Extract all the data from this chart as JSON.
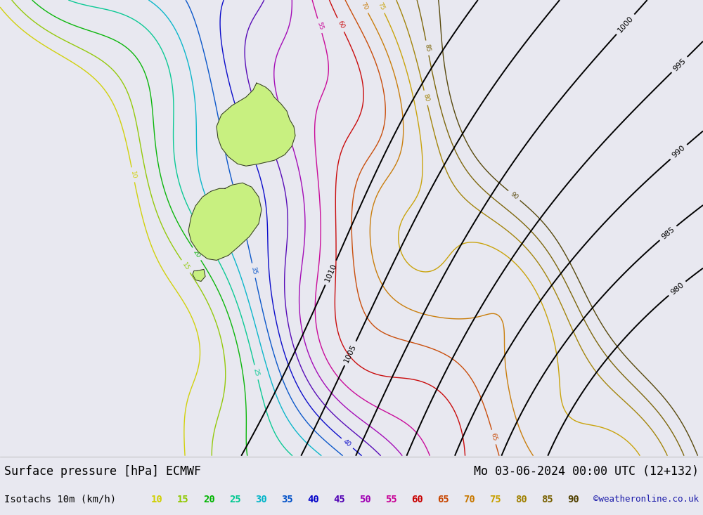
{
  "title_left": "Surface pressure [hPa] ECMWF",
  "title_right": "Mo 03-06-2024 00:00 UTC (12+132)",
  "label_isotachs": "Isotachs 10m (km/h)",
  "watermark": "©weatheronline.co.uk",
  "bg_color": "#e8e8f0",
  "land_color": "#c8f080",
  "land_border_color": "#303030",
  "sea_color": "#e8e8f0",
  "bottom_bar_color": "#e8e8f0",
  "pressure_color": "#000000",
  "font_size_title": 12,
  "font_size_legend": 10,
  "font_size_watermark": 9,
  "isotach_levels": [
    10,
    15,
    20,
    25,
    30,
    35,
    40,
    45,
    50,
    55,
    60,
    65,
    70,
    75,
    80,
    85,
    90
  ],
  "isotach_colors": [
    "#d0d000",
    "#90c800",
    "#00b400",
    "#00c890",
    "#00b4c8",
    "#0050c8",
    "#0000c8",
    "#5000b4",
    "#a000b4",
    "#c80096",
    "#c80000",
    "#c84600",
    "#c87800",
    "#c8a000",
    "#a08000",
    "#786000",
    "#504000"
  ],
  "pressure_levels": [
    980,
    985,
    990,
    995,
    1000,
    1005,
    1010
  ],
  "legend_values": [
    10,
    15,
    20,
    25,
    30,
    35,
    40,
    45,
    50,
    55,
    60,
    65,
    70,
    75,
    80,
    85,
    90
  ],
  "legend_colors_display": [
    "#d0d000",
    "#90c800",
    "#00b400",
    "#00c890",
    "#00b4c8",
    "#0050c8",
    "#0000c8",
    "#5000b4",
    "#a000b4",
    "#c80096",
    "#c80000",
    "#c84600",
    "#c87800",
    "#c8a000",
    "#a08000",
    "#786000",
    "#504000"
  ]
}
